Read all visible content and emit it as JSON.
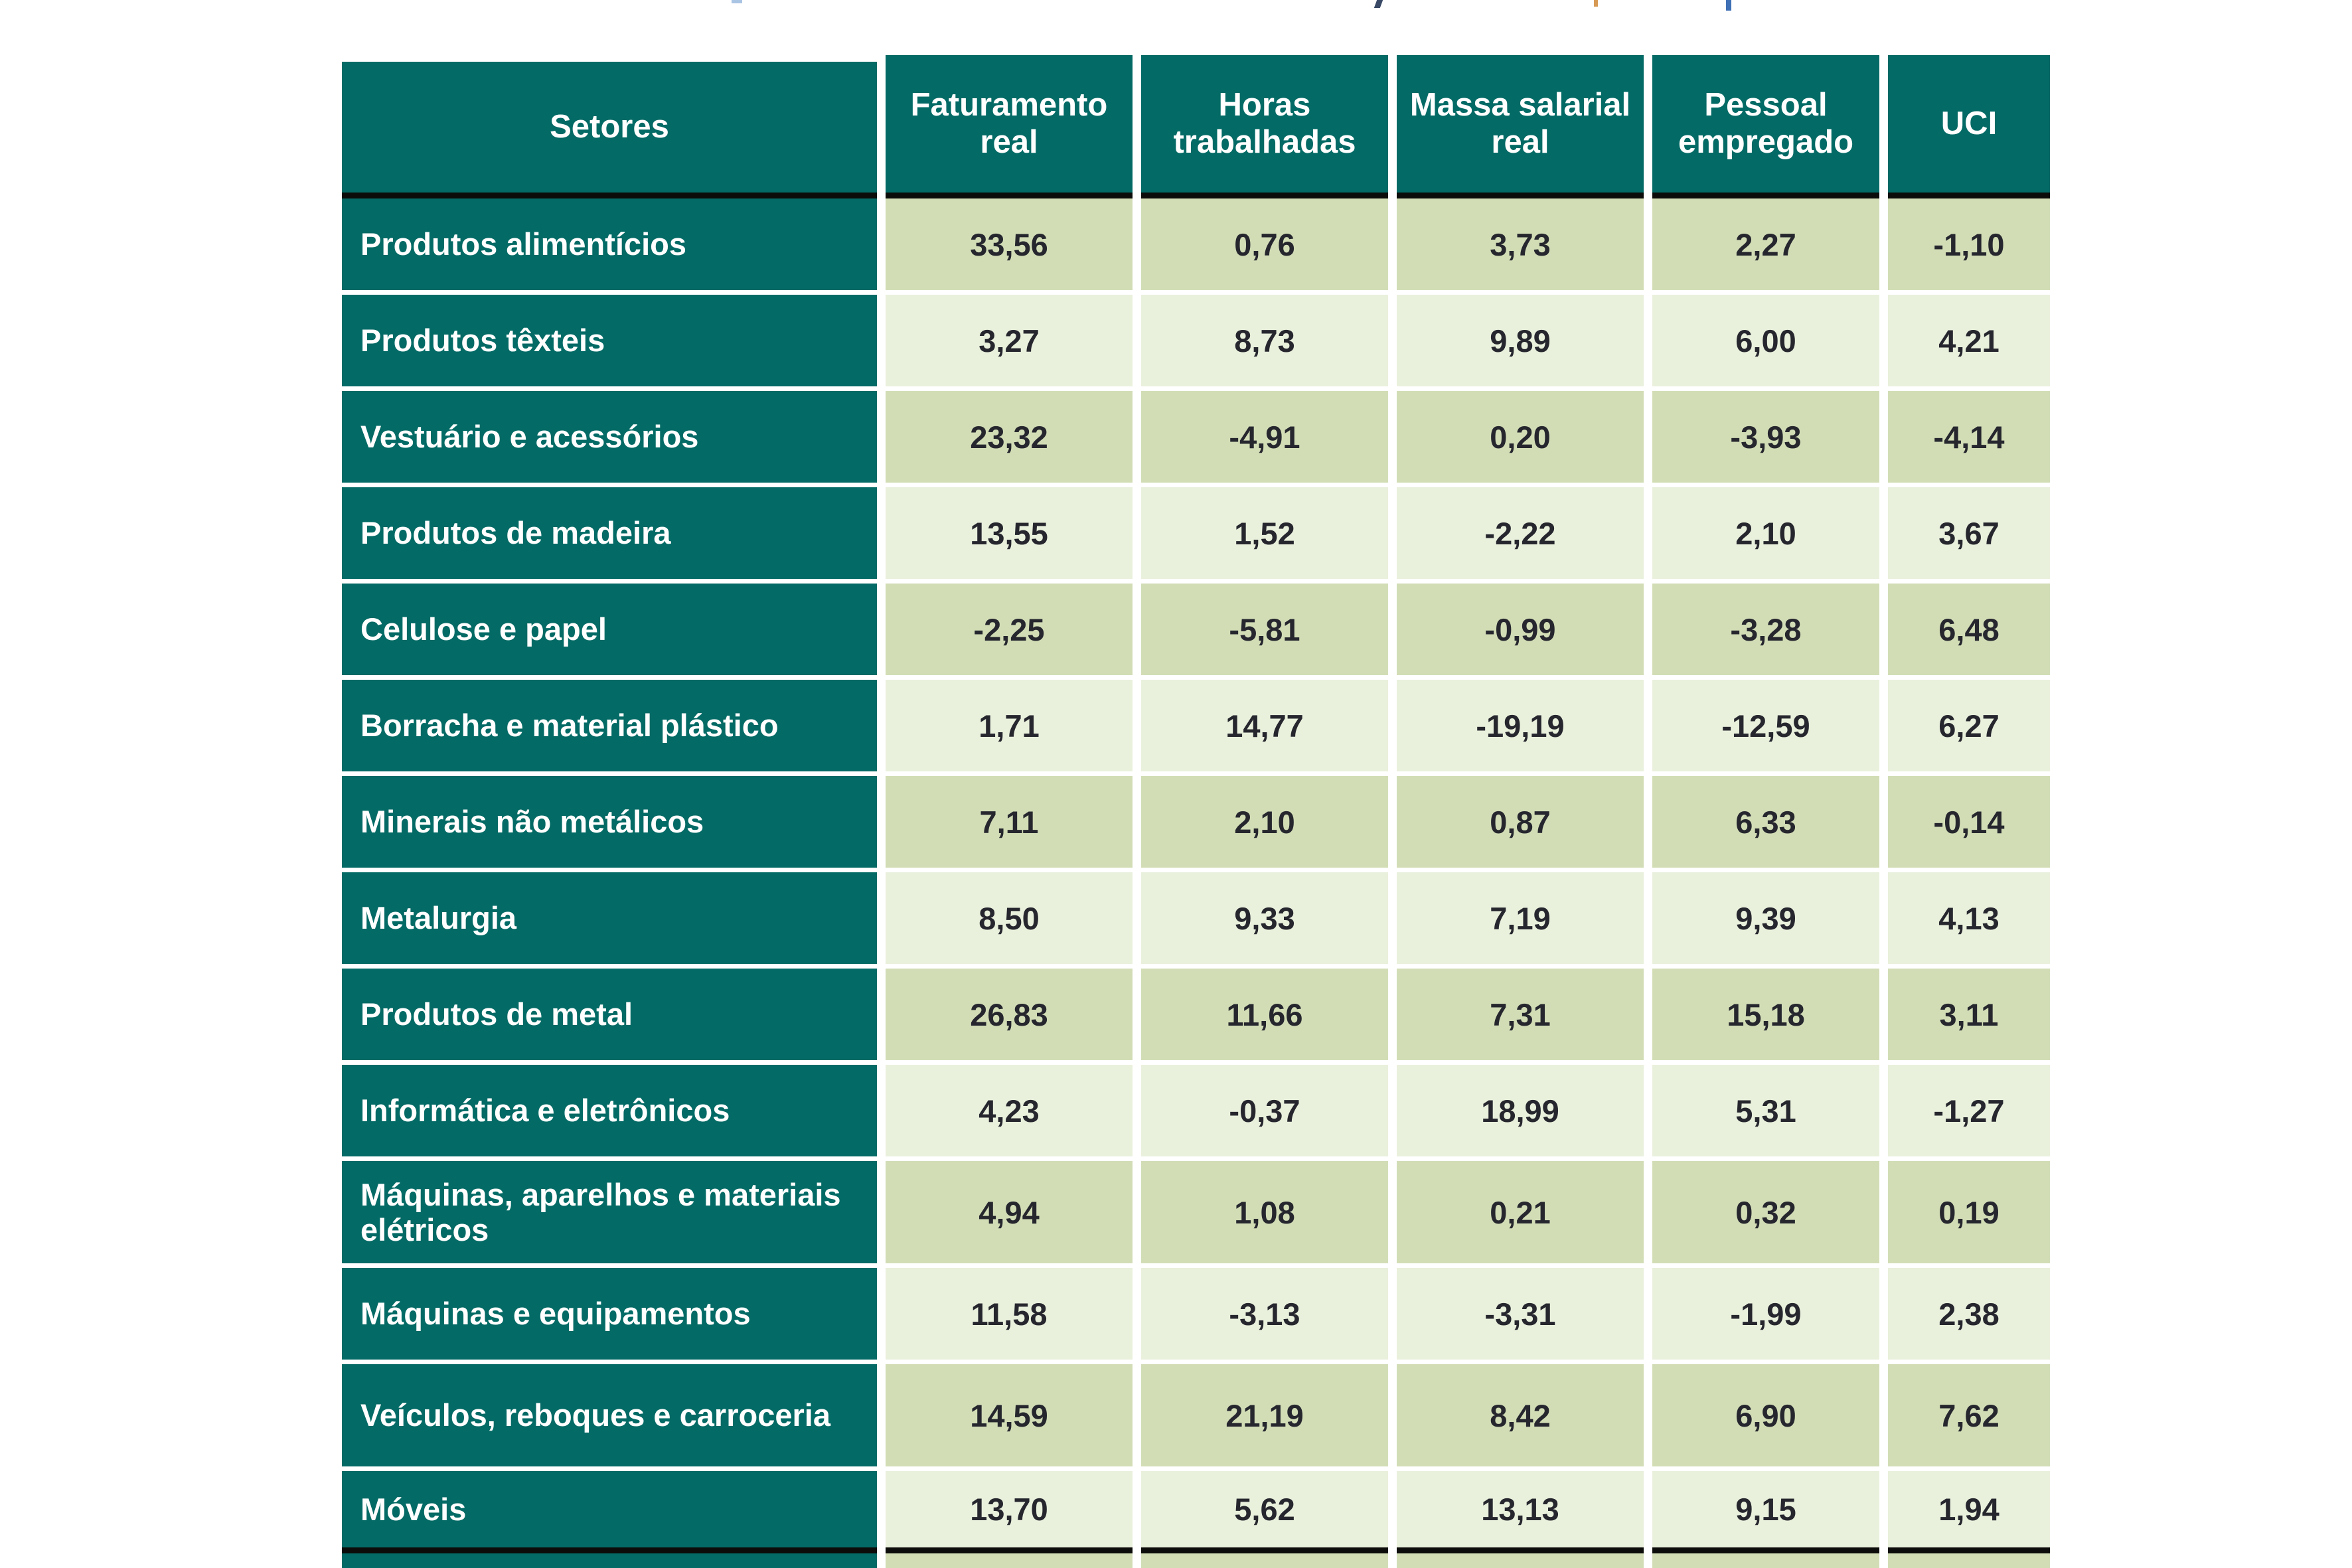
{
  "table": {
    "columns": [
      "Setores",
      "Faturamento real",
      "Horas trabalhadas",
      "Massa salarial real",
      "Pessoal empregado",
      "UCI"
    ],
    "rows": [
      {
        "setor": "Produtos alimentícios",
        "values": [
          "33,56",
          "0,76",
          "3,73",
          "2,27",
          "-1,10"
        ]
      },
      {
        "setor": "Produtos têxteis",
        "values": [
          "3,27",
          "8,73",
          "9,89",
          "6,00",
          "4,21"
        ]
      },
      {
        "setor": "Vestuário e acessórios",
        "values": [
          "23,32",
          "-4,91",
          "0,20",
          "-3,93",
          "-4,14"
        ]
      },
      {
        "setor": "Produtos de madeira",
        "values": [
          "13,55",
          "1,52",
          "-2,22",
          "2,10",
          "3,67"
        ]
      },
      {
        "setor": "Celulose e papel",
        "values": [
          "-2,25",
          "-5,81",
          "-0,99",
          "-3,28",
          "6,48"
        ]
      },
      {
        "setor": "Borracha e material plástico",
        "values": [
          "1,71",
          "14,77",
          "-19,19",
          "-12,59",
          "6,27"
        ]
      },
      {
        "setor": "Minerais não metálicos",
        "values": [
          "7,11",
          "2,10",
          "0,87",
          "6,33",
          "-0,14"
        ]
      },
      {
        "setor": "Metalurgia",
        "values": [
          "8,50",
          "9,33",
          "7,19",
          "9,39",
          "4,13"
        ]
      },
      {
        "setor": "Produtos de metal",
        "values": [
          "26,83",
          "11,66",
          "7,31",
          "15,18",
          "3,11"
        ]
      },
      {
        "setor": "Informática e eletrônicos",
        "values": [
          "4,23",
          "-0,37",
          "18,99",
          "5,31",
          "-1,27"
        ]
      },
      {
        "setor": "Máquinas, aparelhos e materiais elétricos",
        "values": [
          "4,94",
          "1,08",
          "0,21",
          "0,32",
          "0,19"
        ]
      },
      {
        "setor": "Máquinas e equipamentos",
        "values": [
          "11,58",
          "-3,13",
          "-3,31",
          "-1,99",
          "2,38"
        ]
      },
      {
        "setor": "Veículos, reboques e carroceria",
        "values": [
          "14,59",
          "21,19",
          "8,42",
          "6,90",
          "7,62"
        ]
      },
      {
        "setor": "Móveis",
        "values": [
          "13,70",
          "5,62",
          "13,13",
          "9,15",
          "1,94"
        ]
      }
    ],
    "partial_row_at_bottom": "clipped"
  },
  "colors": {
    "teal_header": "#046a65",
    "row_dark_green": "#d2ddb6",
    "row_light_green": "#e9f0dc",
    "rule_black": "#0c0c0a",
    "value_text": "#26272e",
    "header_text": "#ffffff"
  }
}
